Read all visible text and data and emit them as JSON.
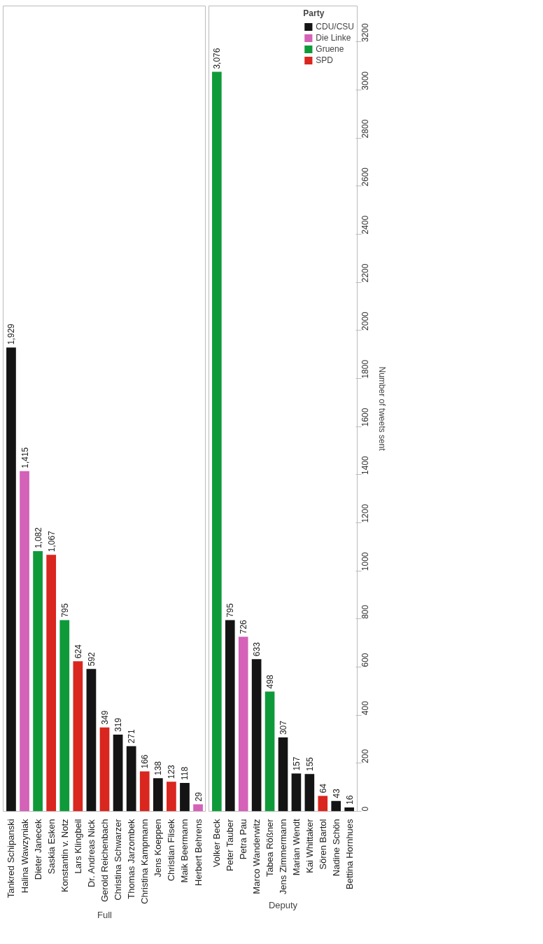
{
  "chart_data": [
    {
      "type": "bar",
      "xlabel": "Full",
      "categories": [
        "Tankred Schipanski",
        "Halina Wawzyniak",
        "Dieter Janecek",
        "Saskia Esken",
        "Konstantin v. Notz",
        "Lars Klingbeil",
        "Dr. Andreas Nick",
        "Gerold Reichenbach",
        "Christina Schwarzer",
        "Thomas Jarzombek",
        "Christina Kampmann",
        "Jens Koeppen",
        "Christian Flisek",
        "Maik Beermann",
        "Herbert Behrens"
      ],
      "series": [
        {
          "color": "#141414",
          "values": [
            1929,
            null,
            null,
            null,
            null,
            null,
            592,
            null,
            319,
            271,
            null,
            138,
            null,
            118,
            null
          ],
          "value_labels": [
            "1,929",
            null,
            null,
            null,
            null,
            null,
            "592",
            null,
            "319",
            "271",
            null,
            "138",
            null,
            "118",
            null
          ]
        },
        {
          "color": "#d462b8",
          "values": [
            null,
            1415,
            null,
            null,
            null,
            null,
            null,
            null,
            null,
            null,
            null,
            null,
            null,
            null,
            29
          ],
          "value_labels": [
            null,
            "1,415",
            null,
            null,
            null,
            null,
            null,
            null,
            null,
            null,
            null,
            null,
            null,
            null,
            "29"
          ]
        },
        {
          "color": "#0f9a3a",
          "values": [
            null,
            null,
            1082,
            null,
            795,
            null,
            null,
            null,
            null,
            null,
            null,
            null,
            null,
            null,
            null
          ],
          "value_labels": [
            null,
            null,
            "1,082",
            null,
            "795",
            null,
            null,
            null,
            null,
            null,
            null,
            null,
            null,
            null,
            null
          ]
        },
        {
          "color": "#d9261f",
          "values": [
            null,
            null,
            null,
            1067,
            null,
            624,
            null,
            349,
            null,
            null,
            166,
            null,
            123,
            null,
            null
          ],
          "value_labels": [
            null,
            null,
            null,
            "1,067",
            null,
            "624",
            null,
            "349",
            null,
            null,
            "166",
            null,
            "123",
            null,
            null
          ]
        }
      ],
      "ylim": [
        0,
        3350
      ],
      "tick_labels": "x"
    },
    {
      "type": "bar",
      "xlabel": "Deputy",
      "ylabel": "Number of tweets sent",
      "legend": "top right",
      "legend_title": "Party",
      "categories": [
        "Volker Beck",
        "Peter Tauber",
        "Petra Pau",
        "Marco Wanderwitz",
        "Tabea Rößner",
        "Jens Zimmermann",
        "Marian Wendt",
        "Kai Whittaker",
        "Sören Bartol",
        "Nadine Schön",
        "Bettina Hornhues"
      ],
      "series": [
        {
          "name": "CDU/CSU",
          "color": "#141414",
          "values": [
            null,
            795,
            null,
            633,
            null,
            307,
            157,
            155,
            null,
            43,
            16
          ],
          "value_labels": [
            null,
            "795",
            null,
            "633",
            null,
            "307",
            "157",
            "155",
            null,
            "43",
            "16"
          ]
        },
        {
          "name": "Die Linke",
          "color": "#d462b8",
          "values": [
            null,
            null,
            726,
            null,
            null,
            null,
            null,
            null,
            null,
            null,
            null
          ],
          "value_labels": [
            null,
            null,
            "726",
            null,
            null,
            null,
            null,
            null,
            null,
            null,
            null
          ]
        },
        {
          "name": "Gruene",
          "color": "#0f9a3a",
          "values": [
            3076,
            null,
            null,
            null,
            498,
            null,
            null,
            null,
            null,
            null,
            null
          ],
          "value_labels": [
            "3,076",
            null,
            null,
            null,
            "498",
            null,
            null,
            null,
            null,
            null,
            null
          ]
        },
        {
          "name": "SPD",
          "color": "#d9261f",
          "values": [
            null,
            null,
            null,
            null,
            null,
            null,
            null,
            null,
            64,
            null,
            null
          ],
          "value_labels": [
            null,
            null,
            null,
            null,
            null,
            null,
            null,
            null,
            "64",
            null,
            null
          ]
        }
      ],
      "ylim": [
        0,
        3350
      ],
      "yticks": [
        0,
        200,
        400,
        600,
        800,
        1000,
        1200,
        1400,
        1600,
        1800,
        2000,
        2200,
        2400,
        2600,
        2800,
        3000,
        3200
      ]
    }
  ]
}
